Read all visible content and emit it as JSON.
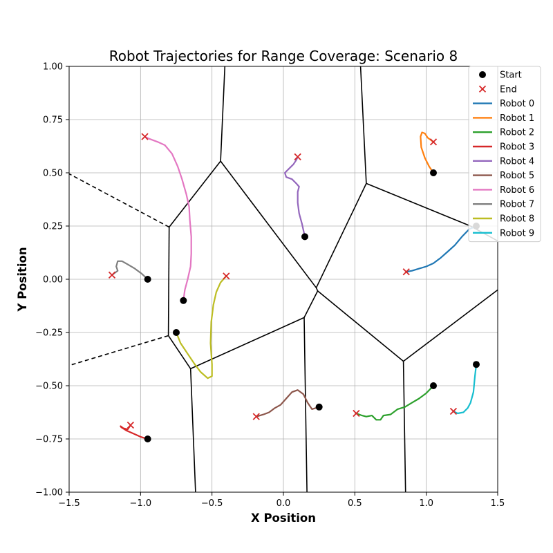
{
  "chart_data": {
    "type": "line",
    "title": "Robot Trajectories for Range Coverage: Scenario 8",
    "xlabel": "X Position",
    "ylabel": "Y Position",
    "xlim": [
      -1.5,
      1.5
    ],
    "ylim": [
      -1.0,
      1.0
    ],
    "x_ticks": [
      -1.5,
      -1.0,
      -0.5,
      0.0,
      0.5,
      1.0,
      1.5
    ],
    "x_tick_labels": [
      "−1.5",
      "−1.0",
      "−0.5",
      "0.0",
      "0.5",
      "1.0",
      "1.5"
    ],
    "y_ticks": [
      -1.0,
      -0.75,
      -0.5,
      -0.25,
      0.0,
      0.25,
      0.5,
      0.75,
      1.0
    ],
    "y_tick_labels": [
      "−1.00",
      "−0.75",
      "−0.50",
      "−0.25",
      "0.00",
      "0.25",
      "0.50",
      "0.75",
      "1.00"
    ],
    "grid": true,
    "legend_position": "top-right",
    "legend": {
      "start_label": "Start",
      "end_label": "End"
    },
    "start_color": "#000000",
    "end_color": "#d62728",
    "voronoi_color": "#000000",
    "voronoi_edges": [
      {
        "style": "solid",
        "points": [
          [
            -0.44,
            0.555
          ],
          [
            -0.8,
            0.245
          ]
        ]
      },
      {
        "style": "solid",
        "points": [
          [
            -0.44,
            0.555
          ],
          [
            -0.41,
            1.0
          ]
        ]
      },
      {
        "style": "solid",
        "points": [
          [
            -0.44,
            0.555
          ],
          [
            0.23,
            -0.04
          ]
        ]
      },
      {
        "style": "solid",
        "points": [
          [
            0.23,
            -0.04
          ],
          [
            0.58,
            0.45
          ]
        ]
      },
      {
        "style": "solid",
        "points": [
          [
            0.58,
            0.45
          ],
          [
            0.54,
            1.0
          ]
        ]
      },
      {
        "style": "solid",
        "points": [
          [
            0.58,
            0.45
          ],
          [
            1.31,
            0.25
          ]
        ]
      },
      {
        "style": "solid",
        "points": [
          [
            1.31,
            0.25
          ],
          [
            1.5,
            0.18
          ]
        ]
      },
      {
        "style": "solid",
        "points": [
          [
            0.23,
            -0.04
          ],
          [
            0.24,
            -0.055
          ]
        ]
      },
      {
        "style": "solid",
        "points": [
          [
            0.24,
            -0.055
          ],
          [
            0.145,
            -0.18
          ]
        ]
      },
      {
        "style": "solid",
        "points": [
          [
            0.24,
            -0.055
          ],
          [
            0.84,
            -0.385
          ]
        ]
      },
      {
        "style": "solid",
        "points": [
          [
            0.84,
            -0.385
          ],
          [
            1.5,
            -0.05
          ]
        ]
      },
      {
        "style": "solid",
        "points": [
          [
            0.84,
            -0.385
          ],
          [
            0.855,
            -1.0
          ]
        ]
      },
      {
        "style": "solid",
        "points": [
          [
            0.145,
            -0.18
          ],
          [
            0.165,
            -1.0
          ]
        ]
      },
      {
        "style": "solid",
        "points": [
          [
            0.145,
            -0.18
          ],
          [
            -0.65,
            -0.42
          ]
        ]
      },
      {
        "style": "solid",
        "points": [
          [
            -0.65,
            -0.42
          ],
          [
            -0.805,
            -0.265
          ]
        ]
      },
      {
        "style": "solid",
        "points": [
          [
            -0.65,
            -0.42
          ],
          [
            -0.615,
            -1.0
          ]
        ]
      },
      {
        "style": "solid",
        "points": [
          [
            -0.805,
            -0.265
          ],
          [
            -0.8,
            0.245
          ]
        ]
      },
      {
        "style": "dashed",
        "points": [
          [
            -0.8,
            0.245
          ],
          [
            -1.5,
            0.495
          ]
        ]
      },
      {
        "style": "dashed",
        "points": [
          [
            -0.805,
            -0.265
          ],
          [
            -1.5,
            -0.405
          ]
        ]
      }
    ],
    "series": [
      {
        "name": "Robot 0",
        "color": "#1f77b4",
        "start": [
          1.35,
          0.25
        ],
        "end": [
          0.86,
          0.035
        ],
        "points": [
          [
            1.35,
            0.25
          ],
          [
            1.3,
            0.235
          ],
          [
            1.25,
            0.2
          ],
          [
            1.2,
            0.16
          ],
          [
            1.15,
            0.13
          ],
          [
            1.1,
            0.1
          ],
          [
            1.05,
            0.075
          ],
          [
            1.0,
            0.06
          ],
          [
            0.95,
            0.05
          ],
          [
            0.9,
            0.04
          ],
          [
            0.86,
            0.035
          ]
        ]
      },
      {
        "name": "Robot 1",
        "color": "#ff7f0e",
        "start": [
          1.05,
          0.5
        ],
        "end": [
          1.05,
          0.645
        ],
        "points": [
          [
            1.05,
            0.5
          ],
          [
            1.02,
            0.53
          ],
          [
            0.99,
            0.57
          ],
          [
            0.965,
            0.62
          ],
          [
            0.96,
            0.67
          ],
          [
            0.97,
            0.69
          ],
          [
            0.99,
            0.685
          ],
          [
            1.01,
            0.665
          ],
          [
            1.03,
            0.655
          ],
          [
            1.05,
            0.645
          ]
        ]
      },
      {
        "name": "Robot 2",
        "color": "#2ca02c",
        "start": [
          1.05,
          -0.5
        ],
        "end": [
          0.51,
          -0.63
        ],
        "points": [
          [
            1.05,
            -0.5
          ],
          [
            1.0,
            -0.535
          ],
          [
            0.95,
            -0.56
          ],
          [
            0.9,
            -0.58
          ],
          [
            0.85,
            -0.6
          ],
          [
            0.8,
            -0.61
          ],
          [
            0.75,
            -0.635
          ],
          [
            0.7,
            -0.64
          ],
          [
            0.68,
            -0.66
          ],
          [
            0.65,
            -0.66
          ],
          [
            0.62,
            -0.64
          ],
          [
            0.58,
            -0.645
          ],
          [
            0.55,
            -0.64
          ],
          [
            0.51,
            -0.63
          ]
        ]
      },
      {
        "name": "Robot 3",
        "color": "#d62728",
        "start": [
          -0.95,
          -0.75
        ],
        "end": [
          -1.07,
          -0.685
        ],
        "points": [
          [
            -0.95,
            -0.75
          ],
          [
            -1.0,
            -0.74
          ],
          [
            -1.05,
            -0.725
          ],
          [
            -1.1,
            -0.71
          ],
          [
            -1.135,
            -0.695
          ],
          [
            -1.14,
            -0.69
          ],
          [
            -1.12,
            -0.7
          ],
          [
            -1.09,
            -0.705
          ],
          [
            -1.07,
            -0.685
          ]
        ]
      },
      {
        "name": "Robot 4",
        "color": "#9467bd",
        "start": [
          0.15,
          0.2
        ],
        "end": [
          0.1,
          0.575
        ],
        "points": [
          [
            0.15,
            0.2
          ],
          [
            0.13,
            0.26
          ],
          [
            0.11,
            0.31
          ],
          [
            0.1,
            0.36
          ],
          [
            0.1,
            0.41
          ],
          [
            0.11,
            0.435
          ],
          [
            0.09,
            0.45
          ],
          [
            0.06,
            0.47
          ],
          [
            0.02,
            0.48
          ],
          [
            0.01,
            0.5
          ],
          [
            0.04,
            0.52
          ],
          [
            0.07,
            0.54
          ],
          [
            0.09,
            0.56
          ],
          [
            0.1,
            0.575
          ]
        ]
      },
      {
        "name": "Robot 5",
        "color": "#8c564b",
        "start": [
          0.25,
          -0.6
        ],
        "end": [
          -0.19,
          -0.645
        ],
        "points": [
          [
            0.25,
            -0.6
          ],
          [
            0.2,
            -0.61
          ],
          [
            0.17,
            -0.58
          ],
          [
            0.14,
            -0.54
          ],
          [
            0.1,
            -0.52
          ],
          [
            0.06,
            -0.53
          ],
          [
            0.02,
            -0.56
          ],
          [
            -0.02,
            -0.59
          ],
          [
            -0.06,
            -0.605
          ],
          [
            -0.1,
            -0.625
          ],
          [
            -0.14,
            -0.635
          ],
          [
            -0.19,
            -0.645
          ]
        ]
      },
      {
        "name": "Robot 6",
        "color": "#e377c2",
        "start": [
          -0.7,
          -0.1
        ],
        "end": [
          -0.97,
          0.67
        ],
        "points": [
          [
            -0.7,
            -0.1
          ],
          [
            -0.69,
            -0.05
          ],
          [
            -0.67,
            0.0
          ],
          [
            -0.65,
            0.06
          ],
          [
            -0.645,
            0.12
          ],
          [
            -0.645,
            0.2
          ],
          [
            -0.655,
            0.28
          ],
          [
            -0.66,
            0.34
          ],
          [
            -0.68,
            0.4
          ],
          [
            -0.71,
            0.47
          ],
          [
            -0.74,
            0.53
          ],
          [
            -0.78,
            0.59
          ],
          [
            -0.83,
            0.63
          ],
          [
            -0.88,
            0.645
          ],
          [
            -0.94,
            0.66
          ],
          [
            -0.97,
            0.67
          ]
        ]
      },
      {
        "name": "Robot 7",
        "color": "#7f7f7f",
        "start": [
          -0.95,
          0.0
        ],
        "end": [
          -1.2,
          0.02
        ],
        "points": [
          [
            -0.95,
            0.0
          ],
          [
            -0.99,
            0.025
          ],
          [
            -1.04,
            0.05
          ],
          [
            -1.09,
            0.07
          ],
          [
            -1.13,
            0.085
          ],
          [
            -1.16,
            0.085
          ],
          [
            -1.17,
            0.06
          ],
          [
            -1.16,
            0.04
          ],
          [
            -1.18,
            0.03
          ],
          [
            -1.2,
            0.02
          ]
        ]
      },
      {
        "name": "Robot 8",
        "color": "#bcbd22",
        "start": [
          -0.75,
          -0.25
        ],
        "end": [
          -0.4,
          0.015
        ],
        "points": [
          [
            -0.75,
            -0.25
          ],
          [
            -0.72,
            -0.3
          ],
          [
            -0.67,
            -0.35
          ],
          [
            -0.62,
            -0.4
          ],
          [
            -0.58,
            -0.435
          ],
          [
            -0.53,
            -0.465
          ],
          [
            -0.5,
            -0.455
          ],
          [
            -0.5,
            -0.4
          ],
          [
            -0.51,
            -0.3
          ],
          [
            -0.505,
            -0.2
          ],
          [
            -0.49,
            -0.12
          ],
          [
            -0.47,
            -0.06
          ],
          [
            -0.44,
            -0.015
          ],
          [
            -0.4,
            0.015
          ]
        ]
      },
      {
        "name": "Robot 9",
        "color": "#17becf",
        "start": [
          1.35,
          -0.4
        ],
        "end": [
          1.19,
          -0.62
        ],
        "points": [
          [
            1.35,
            -0.4
          ],
          [
            1.34,
            -0.46
          ],
          [
            1.33,
            -0.53
          ],
          [
            1.31,
            -0.58
          ],
          [
            1.29,
            -0.605
          ],
          [
            1.26,
            -0.625
          ],
          [
            1.22,
            -0.63
          ],
          [
            1.19,
            -0.62
          ]
        ]
      }
    ]
  }
}
